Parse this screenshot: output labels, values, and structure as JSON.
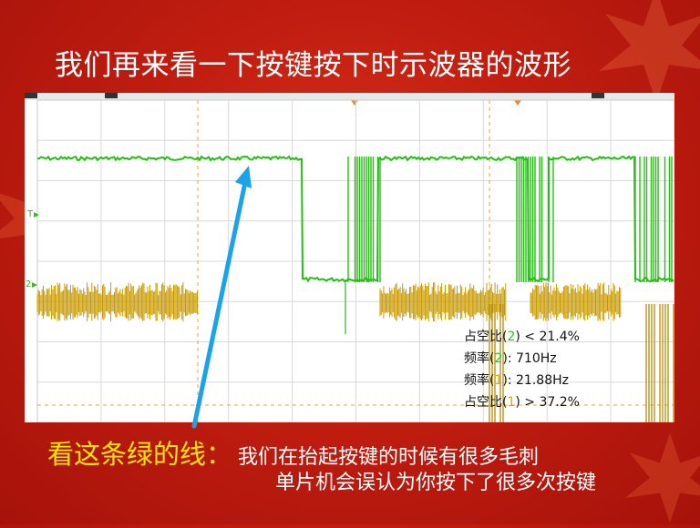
{
  "slide": {
    "title": "我们再来看一下按键按下时示波器的波形",
    "caption_main": "看这条绿的线：",
    "caption_line1": "我们在抬起按键的时候有很多毛刺",
    "caption_line2": "单片机会误认为你按下了很多次按键"
  },
  "scope": {
    "markers": {
      "trigger": "T",
      "channel2": "2"
    },
    "readouts": [
      {
        "label": "占空比(",
        "ch": "2",
        "value": ") < 21.4%"
      },
      {
        "label": "频率(",
        "ch": "2",
        "value": "): 710Hz"
      },
      {
        "label": "频率(",
        "ch": "1",
        "value": "): 21.88Hz"
      },
      {
        "label": "占空比(",
        "ch": "1",
        "value": ") > 37.2%"
      }
    ]
  },
  "colors": {
    "background": "#c11d10",
    "green_trace": "#22c010",
    "gold_trace": "#c99a00",
    "caption_highlight": "#ffe600",
    "arrow": "#1aa3e8"
  }
}
